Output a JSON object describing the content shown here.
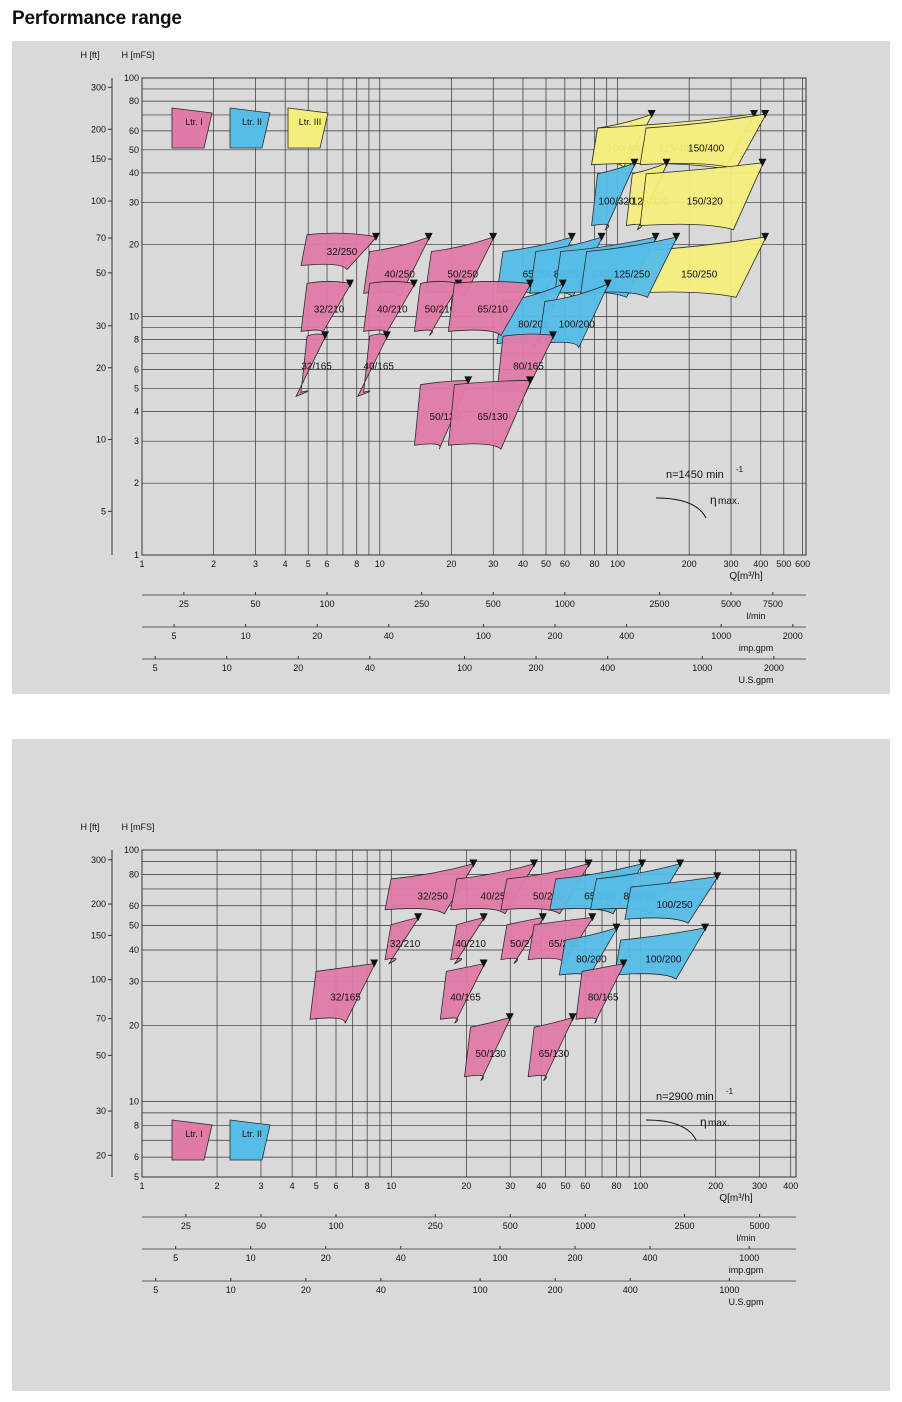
{
  "page": {
    "title": "Performance range"
  },
  "colors": {
    "pink": "#e07ba8",
    "blue": "#55bde8",
    "yellow": "#f4ee7d",
    "grid": "#333333"
  },
  "chart_data": [
    {
      "type": "area",
      "speed_label": "n=1450 min",
      "speed_exp": "-1",
      "eff_label": "max.",
      "eta_symbol": "η",
      "y_left_unit": "H [ft]",
      "y_right_unit": "H [mFS]",
      "y_ft_ticks": [
        "300",
        "200",
        "150",
        "100",
        "70",
        "50",
        "30",
        "20",
        "10",
        "5"
      ],
      "y_m_ticks": [
        "100",
        "80",
        "60",
        "50",
        "40",
        "30",
        "20",
        "10",
        "8",
        "6",
        "5",
        "4",
        "3",
        "2",
        "1"
      ],
      "x_main_ticks": [
        "1",
        "2",
        "3",
        "4",
        "5",
        "6",
        "8",
        "10",
        "20",
        "30",
        "40",
        "50",
        "60",
        "80",
        "100",
        "200",
        "300",
        "400",
        "500",
        "600"
      ],
      "x_main_unit": "Q[m³/h]",
      "x_lmin_ticks": [
        "25",
        "50",
        "100",
        "250",
        "500",
        "1000",
        "2500",
        "5000",
        "7500"
      ],
      "x_lmin_unit": "l/min",
      "x_imp_ticks": [
        "5",
        "10",
        "20",
        "40",
        "100",
        "200",
        "400",
        "1000",
        "2000"
      ],
      "x_imp_unit": "imp.gpm",
      "x_us_ticks": [
        "5",
        "10",
        "20",
        "40",
        "100",
        "200",
        "400",
        "1000",
        "2000"
      ],
      "x_us_unit": "U.S.gpm",
      "legend": [
        {
          "label": "Ltr. I",
          "color": "pink"
        },
        {
          "label": "Ltr. II",
          "color": "blue"
        },
        {
          "label": "Ltr. III",
          "color": "yellow"
        }
      ],
      "regions": [
        {
          "label": "100/400",
          "color": "yellow",
          "q": [
            100,
            130,
            60
          ],
          "h": [
            56,
            72,
            45
          ]
        },
        {
          "label": "125/400",
          "color": "yellow",
          "q": [
            100,
            350,
            140
          ],
          "h": [
            56,
            72,
            45
          ]
        },
        {
          "label": "150/400",
          "color": "yellow",
          "q": [
            160,
            390,
            205
          ],
          "h": [
            56,
            72,
            45
          ]
        },
        {
          "label": "125/320",
          "color": "yellow",
          "q": [
            140,
            150,
            120
          ],
          "h": [
            36,
            45,
            25
          ]
        },
        {
          "label": "150/320",
          "color": "yellow",
          "q": [
            160,
            380,
            200
          ],
          "h": [
            36,
            45,
            25
          ]
        },
        {
          "label": "150/250",
          "color": "yellow",
          "q": [
            140,
            390,
            170
          ],
          "h": [
            17,
            22,
            13
          ]
        },
        {
          "label": "100/320",
          "color": "blue",
          "q": [
            100,
            110,
            50
          ],
          "h": [
            36,
            45,
            25
          ]
        },
        {
          "label": "65/250",
          "color": "blue",
          "q": [
            40,
            60,
            33
          ],
          "h": [
            17,
            22,
            13
          ]
        },
        {
          "label": "80/250",
          "color": "blue",
          "q": [
            55,
            80,
            40
          ],
          "h": [
            17,
            22,
            13
          ]
        },
        {
          "label": "100/250",
          "color": "blue",
          "q": [
            70,
            135,
            65
          ],
          "h": [
            17,
            22,
            13
          ]
        },
        {
          "label": "125/250",
          "color": "blue",
          "q": [
            90,
            165,
            95
          ],
          "h": [
            17,
            22,
            13
          ]
        },
        {
          "label": "80/200",
          "color": "blue",
          "q": [
            40,
            55,
            35
          ],
          "h": [
            10.5,
            14,
            8
          ]
        },
        {
          "label": "100/200",
          "color": "blue",
          "q": [
            60,
            85,
            55
          ],
          "h": [
            10.5,
            14,
            8
          ]
        },
        {
          "label": "32/250",
          "color": "pink",
          "q": [
            6,
            9,
            4.5
          ],
          "h": [
            20,
            22,
            17
          ]
        },
        {
          "label": "40/250",
          "color": "pink",
          "q": [
            11,
            15,
            8
          ],
          "h": [
            17,
            22,
            13
          ]
        },
        {
          "label": "50/250",
          "color": "pink",
          "q": [
            20,
            28,
            15
          ],
          "h": [
            17,
            22,
            13
          ]
        },
        {
          "label": "32/210",
          "color": "pink",
          "q": [
            6,
            7,
            3
          ],
          "h": [
            12.5,
            14,
            9
          ]
        },
        {
          "label": "40/210",
          "color": "pink",
          "q": [
            11,
            13,
            7
          ],
          "h": [
            12.5,
            14,
            9
          ]
        },
        {
          "label": "50/210",
          "color": "pink",
          "q": [
            18,
            20,
            14
          ],
          "h": [
            12.5,
            14,
            9
          ]
        },
        {
          "label": "65/210",
          "color": "pink",
          "q": [
            25,
            40,
            20
          ],
          "h": [
            12.5,
            14,
            9
          ]
        },
        {
          "label": "32/165",
          "color": "pink",
          "q": [
            6,
            5.5,
            3
          ],
          "h": [
            7.5,
            8.5,
            5
          ]
        },
        {
          "label": "40/165",
          "color": "pink",
          "q": [
            11,
            10,
            6
          ],
          "h": [
            7.5,
            8.5,
            5
          ]
        },
        {
          "label": "80/165",
          "color": "pink",
          "q": [
            40,
            50,
            30
          ],
          "h": [
            7.5,
            8.5,
            5
          ]
        },
        {
          "label": "50/130",
          "color": "pink",
          "q": [
            18,
            22,
            12
          ],
          "h": [
            4.7,
            5.5,
            3
          ]
        },
        {
          "label": "65/130",
          "color": "pink",
          "q": [
            25,
            40,
            20
          ],
          "h": [
            4.7,
            5.5,
            3
          ]
        }
      ]
    },
    {
      "type": "area",
      "speed_label": "n=2900 min",
      "speed_exp": "-1",
      "eff_label": "max.",
      "eta_symbol": "η",
      "y_left_unit": "H [ft]",
      "y_right_unit": "H [mFS]",
      "y_ft_ticks": [
        "300",
        "200",
        "150",
        "100",
        "70",
        "50",
        "30",
        "20"
      ],
      "y_m_ticks": [
        "100",
        "80",
        "60",
        "50",
        "40",
        "30",
        "20",
        "10",
        "8",
        "6",
        "5"
      ],
      "x_main_ticks": [
        "1",
        "2",
        "3",
        "4",
        "5",
        "6",
        "8",
        "10",
        "20",
        "30",
        "40",
        "50",
        "60",
        "80",
        "100",
        "200",
        "300",
        "400"
      ],
      "x_main_unit": "Q[m³/h]",
      "x_lmin_ticks": [
        "25",
        "50",
        "100",
        "250",
        "500",
        "1000",
        "2500",
        "5000"
      ],
      "x_lmin_unit": "l/min",
      "x_imp_ticks": [
        "5",
        "10",
        "20",
        "40",
        "100",
        "200",
        "400",
        "1000"
      ],
      "x_imp_unit": "imp.gpm",
      "x_us_ticks": [
        "5",
        "10",
        "20",
        "40",
        "100",
        "200",
        "400",
        "1000"
      ],
      "x_us_unit": "U.S.gpm",
      "legend": [
        {
          "label": "Ltr. I",
          "color": "pink"
        },
        {
          "label": "Ltr. II",
          "color": "blue"
        }
      ],
      "regions": [
        {
          "label": "32/250",
          "color": "pink",
          "q": [
            12,
            20,
            8
          ],
          "h": [
            70,
            90,
            60
          ]
        },
        {
          "label": "40/250",
          "color": "pink",
          "q": [
            22,
            35,
            17
          ],
          "h": [
            70,
            90,
            60
          ]
        },
        {
          "label": "50/250",
          "color": "pink",
          "q": [
            35,
            58,
            30
          ],
          "h": [
            70,
            90,
            60
          ]
        },
        {
          "label": "65/250",
          "color": "blue",
          "q": [
            55,
            95,
            50
          ],
          "h": [
            70,
            90,
            60
          ]
        },
        {
          "label": "80/250",
          "color": "blue",
          "q": [
            80,
            135,
            80
          ],
          "h": [
            70,
            90,
            60
          ]
        },
        {
          "label": "100/250",
          "color": "blue",
          "q": [
            110,
            190,
            120
          ],
          "h": [
            65,
            80,
            55
          ]
        },
        {
          "label": "32/210",
          "color": "pink",
          "q": [
            12,
            12,
            6
          ],
          "h": [
            46,
            55,
            38
          ]
        },
        {
          "label": "40/210",
          "color": "pink",
          "q": [
            22,
            22,
            15
          ],
          "h": [
            46,
            55,
            38
          ]
        },
        {
          "label": "50/210",
          "color": "pink",
          "q": [
            35,
            38,
            25
          ],
          "h": [
            46,
            55,
            38
          ]
        },
        {
          "label": "65/210",
          "color": "pink",
          "q": [
            45,
            60,
            40
          ],
          "h": [
            46,
            55,
            38
          ]
        },
        {
          "label": "80/200",
          "color": "blue",
          "q": [
            60,
            75,
            55
          ],
          "h": [
            40,
            50,
            33
          ]
        },
        {
          "label": "100/200",
          "color": "blue",
          "q": [
            100,
            170,
            100
          ],
          "h": [
            40,
            50,
            33
          ]
        },
        {
          "label": "32/165",
          "color": "pink",
          "q": [
            6,
            8,
            3
          ],
          "h": [
            30,
            36,
            22
          ]
        },
        {
          "label": "40/165",
          "color": "pink",
          "q": [
            20,
            22,
            12
          ],
          "h": [
            30,
            36,
            22
          ]
        },
        {
          "label": "80/165",
          "color": "pink",
          "q": [
            70,
            80,
            60
          ],
          "h": [
            30,
            36,
            22
          ]
        },
        {
          "label": "50/130",
          "color": "pink",
          "q": [
            25,
            28,
            17
          ],
          "h": [
            18,
            22,
            13
          ]
        },
        {
          "label": "65/130",
          "color": "pink",
          "q": [
            45,
            50,
            35
          ],
          "h": [
            18,
            22,
            13
          ]
        }
      ]
    }
  ]
}
